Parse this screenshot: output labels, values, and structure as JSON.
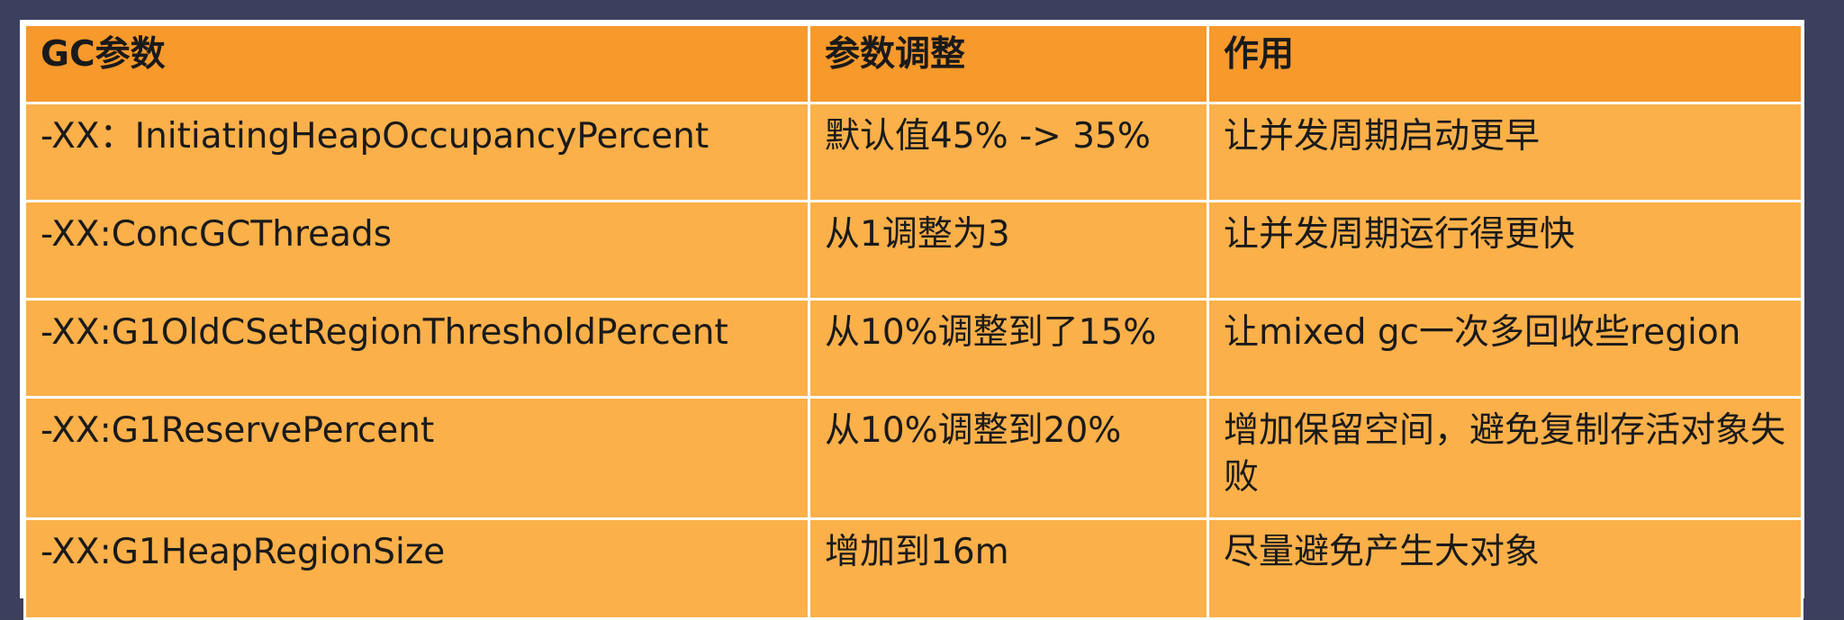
{
  "table": {
    "headers": [
      "GC参数",
      "参数调整",
      "作用"
    ],
    "rows": [
      [
        "-XX：InitiatingHeapOccupancyPercent",
        "默认值45% -> 35%",
        "让并发周期启动更早"
      ],
      [
        "-XX:ConcGCThreads",
        "从1调整为3",
        "让并发周期运行得更快"
      ],
      [
        "-XX:G1OldCSetRegionThresholdPercent",
        "从10%调整到了15%",
        "让mixed gc一次多回收些region"
      ],
      [
        "-XX:G1ReservePercent",
        "从10%调整到20%",
        "增加保留空间，避免复制存活对象失败"
      ],
      [
        "-XX:G1HeapRegionSize",
        "增加到16m",
        "尽量避免产生大对象"
      ]
    ]
  },
  "colors": {
    "header_bg": "#f7992b",
    "cell_bg": "#fbb04a",
    "page_bg": "#3c405e",
    "grid": "#ffffff"
  }
}
